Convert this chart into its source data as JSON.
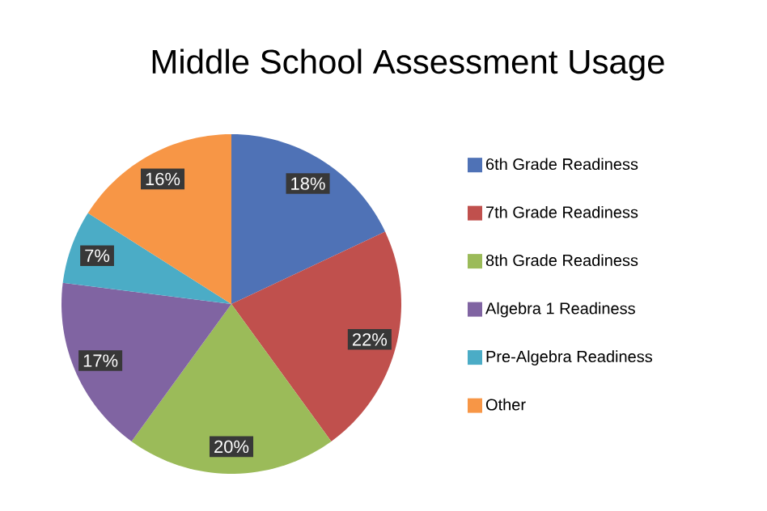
{
  "chart_data": {
    "type": "pie",
    "title": "Middle School Assessment Usage",
    "categories": [
      "6th Grade Readiness",
      "7th Grade Readiness",
      "8th Grade Readiness",
      "Algebra 1 Readiness",
      "Pre-Algebra Readiness",
      "Other"
    ],
    "values": [
      18,
      22,
      20,
      17,
      7,
      16
    ],
    "value_labels": [
      "18%",
      "22%",
      "20%",
      "17%",
      "7%",
      "16%"
    ],
    "colors": [
      "#4f72b6",
      "#c0504d",
      "#9bbb59",
      "#8064a2",
      "#4bacc6",
      "#f79646"
    ],
    "legend": "right"
  }
}
